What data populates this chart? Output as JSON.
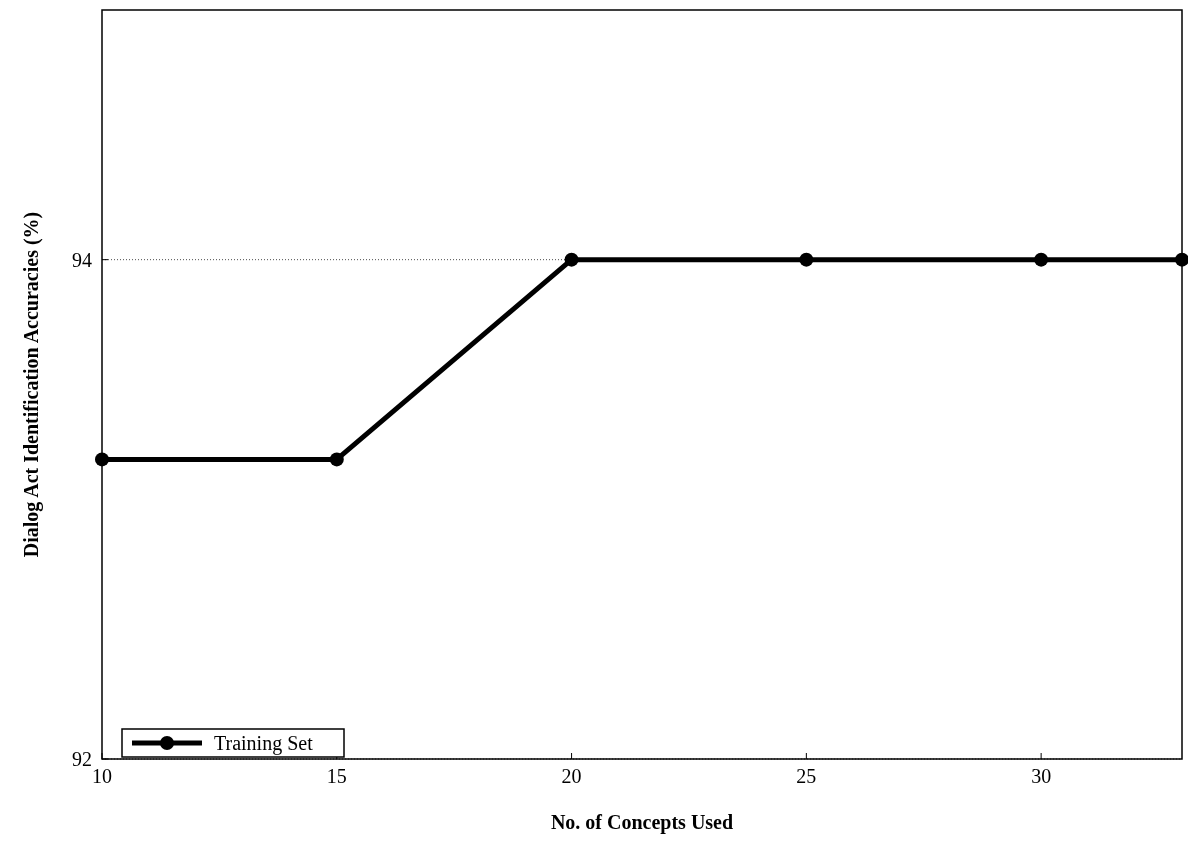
{
  "chart_data": {
    "type": "line",
    "xlabel": "No. of Concepts Used",
    "ylabel": "Dialog Act Identification Accuracies (%)",
    "x": [
      10,
      15,
      20,
      25,
      30,
      33
    ],
    "series": [
      {
        "name": "Training Set",
        "color": "#000000",
        "values": [
          93.2,
          93.2,
          94,
          94,
          94,
          94
        ]
      }
    ],
    "xlim": [
      10,
      33
    ],
    "xticks": [
      10,
      15,
      20,
      25,
      30
    ],
    "ylim": [
      92,
      95
    ],
    "yticks": [
      92,
      94
    ],
    "grid": "y",
    "legend": "bottom left",
    "marker": "circle",
    "line_style": "solid"
  }
}
